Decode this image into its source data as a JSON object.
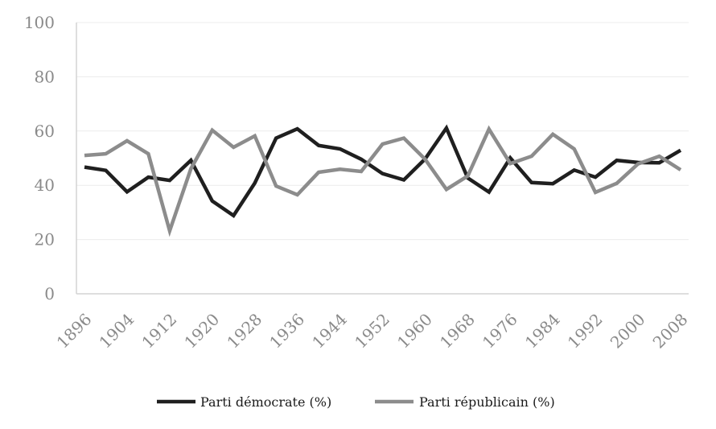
{
  "chart_data": {
    "type": "line",
    "title": "",
    "xlabel": "",
    "ylabel": "",
    "ylim": [
      0,
      100
    ],
    "yticks": [
      0,
      20,
      40,
      60,
      80,
      100
    ],
    "grid": true,
    "legend_position": "bottom",
    "x": [
      1896,
      1900,
      1904,
      1908,
      1912,
      1916,
      1920,
      1924,
      1928,
      1932,
      1936,
      1940,
      1944,
      1948,
      1952,
      1956,
      1960,
      1964,
      1968,
      1972,
      1976,
      1980,
      1984,
      1988,
      1992,
      1996,
      2000,
      2004,
      2008
    ],
    "xtick_labels": [
      "1896",
      "1904",
      "1912",
      "1920",
      "1928",
      "1936",
      "1944",
      "1952",
      "1960",
      "1968",
      "1976",
      "1984",
      "1992",
      "2000",
      "2008"
    ],
    "series": [
      {
        "name": "Parti démocrate (%)",
        "color": "#1f1f1f",
        "values": [
          46.7,
          45.5,
          37.6,
          43.0,
          41.8,
          49.2,
          34.2,
          28.8,
          40.8,
          57.4,
          60.8,
          54.7,
          53.4,
          49.6,
          44.3,
          42.0,
          49.7,
          61.1,
          42.7,
          37.5,
          50.1,
          41.0,
          40.6,
          45.6,
          43.0,
          49.2,
          48.4,
          48.3,
          52.9
        ]
      },
      {
        "name": "Parti républicain (%)",
        "color": "#8c8c8c",
        "values": [
          51.0,
          51.6,
          56.4,
          51.6,
          23.2,
          46.1,
          60.3,
          54.0,
          58.2,
          39.7,
          36.5,
          44.8,
          45.9,
          45.1,
          55.2,
          57.4,
          49.6,
          38.5,
          43.4,
          60.7,
          48.0,
          50.7,
          58.8,
          53.4,
          37.4,
          40.7,
          47.9,
          50.7,
          45.7
        ]
      }
    ]
  }
}
